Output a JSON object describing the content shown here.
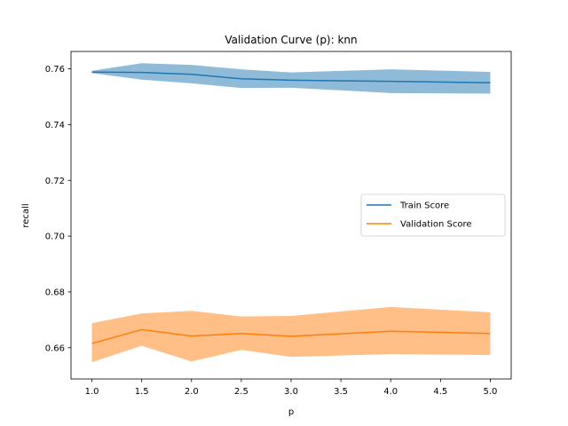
{
  "chart_data": {
    "type": "line",
    "title": "Validation Curve (p): knn",
    "xlabel": "p",
    "ylabel": "recall",
    "x": [
      1.0,
      1.5,
      2.0,
      2.5,
      3.0,
      4.0,
      5.0
    ],
    "xlim": [
      0.79,
      5.21
    ],
    "ylim": [
      0.6488,
      0.7662
    ],
    "xticks": [
      1.0,
      1.5,
      2.0,
      2.5,
      3.0,
      3.5,
      4.0,
      4.5,
      5.0
    ],
    "xtick_labels": [
      "1.0",
      "1.5",
      "2.0",
      "2.5",
      "3.0",
      "3.5",
      "4.0",
      "4.5",
      "5.0"
    ],
    "yticks": [
      0.66,
      0.68,
      0.7,
      0.72,
      0.74,
      0.76
    ],
    "ytick_labels": [
      "0.66",
      "0.68",
      "0.70",
      "0.72",
      "0.74",
      "0.76"
    ],
    "grid": false,
    "legend_position": "center-right",
    "series": [
      {
        "name": "Train Score",
        "color": "#1f77b4",
        "band_color": "#1f77b4",
        "values": [
          0.7588,
          0.7587,
          0.758,
          0.7564,
          0.7559,
          0.7555,
          0.755
        ],
        "lower": [
          0.7584,
          0.7561,
          0.7548,
          0.7531,
          0.7532,
          0.7513,
          0.7511
        ],
        "upper": [
          0.7593,
          0.762,
          0.7614,
          0.7598,
          0.7587,
          0.7598,
          0.7589
        ]
      },
      {
        "name": "Validation Score",
        "color": "#ff7f0e",
        "band_color": "#ff7f0e",
        "values": [
          0.6615,
          0.6665,
          0.6642,
          0.6651,
          0.6641,
          0.6659,
          0.6651
        ],
        "lower": [
          0.6548,
          0.6607,
          0.6551,
          0.6592,
          0.6567,
          0.6577,
          0.6574
        ],
        "upper": [
          0.6688,
          0.6723,
          0.6732,
          0.6712,
          0.6714,
          0.6746,
          0.6727
        ]
      }
    ]
  }
}
